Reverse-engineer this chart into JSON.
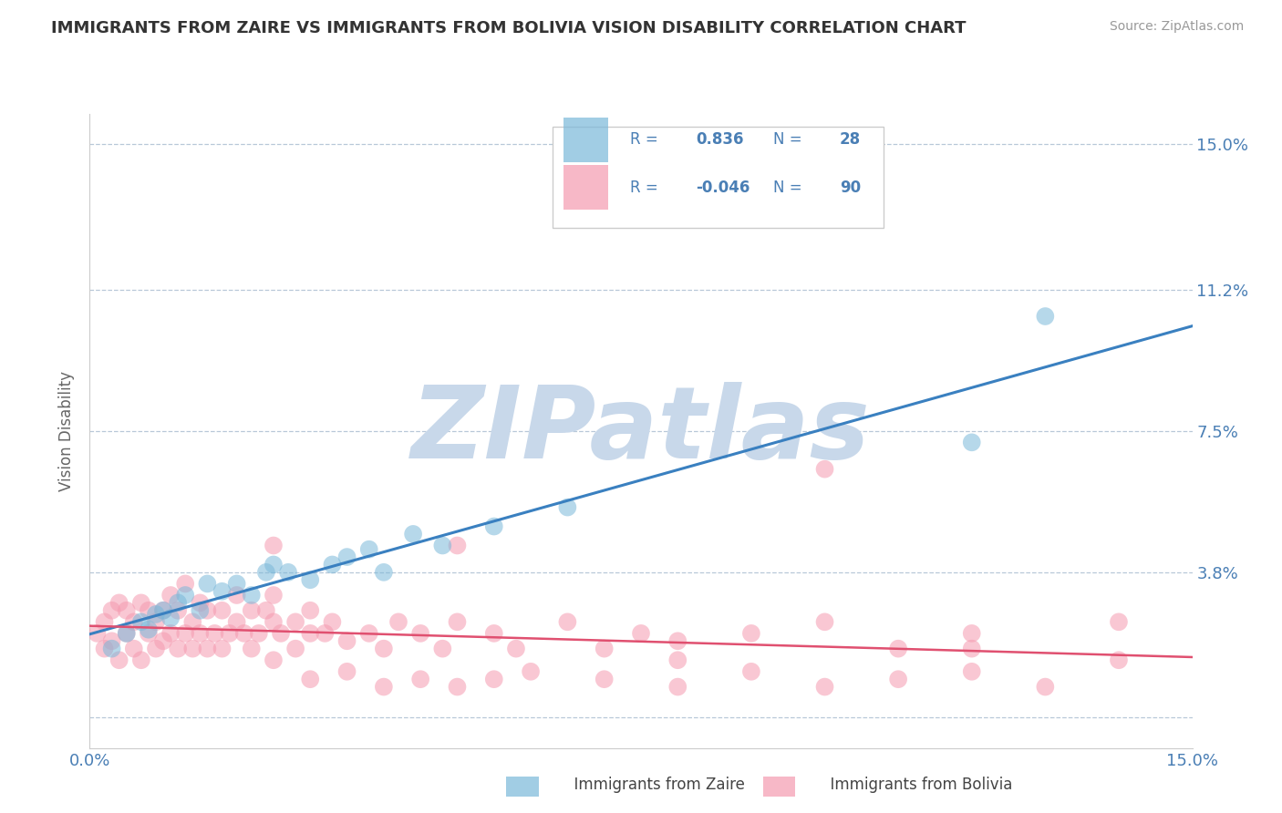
{
  "title": "IMMIGRANTS FROM ZAIRE VS IMMIGRANTS FROM BOLIVIA VISION DISABILITY CORRELATION CHART",
  "source": "Source: ZipAtlas.com",
  "ylabel": "Vision Disability",
  "x_min": 0.0,
  "x_max": 0.15,
  "y_min": -0.008,
  "y_max": 0.158,
  "y_ticks": [
    0.0,
    0.038,
    0.075,
    0.112,
    0.15
  ],
  "y_tick_labels": [
    "",
    "3.8%",
    "7.5%",
    "11.2%",
    "15.0%"
  ],
  "x_ticks": [
    0.0,
    0.15
  ],
  "x_tick_labels": [
    "0.0%",
    "15.0%"
  ],
  "zaire_color": "#7ab8d9",
  "bolivia_color": "#f59ab0",
  "zaire_line_color": "#3a80c0",
  "bolivia_line_color": "#e05070",
  "watermark": "ZIPatlas",
  "watermark_color": "#c8d8ea",
  "zaire_scatter_x": [
    0.003,
    0.005,
    0.007,
    0.008,
    0.009,
    0.01,
    0.011,
    0.012,
    0.013,
    0.015,
    0.016,
    0.018,
    0.02,
    0.022,
    0.024,
    0.025,
    0.027,
    0.03,
    0.033,
    0.035,
    0.038,
    0.04,
    0.044,
    0.048,
    0.055,
    0.065,
    0.12,
    0.13
  ],
  "zaire_scatter_y": [
    0.018,
    0.022,
    0.025,
    0.023,
    0.027,
    0.028,
    0.026,
    0.03,
    0.032,
    0.028,
    0.035,
    0.033,
    0.035,
    0.032,
    0.038,
    0.04,
    0.038,
    0.036,
    0.04,
    0.042,
    0.044,
    0.038,
    0.048,
    0.045,
    0.05,
    0.055,
    0.072,
    0.105
  ],
  "bolivia_scatter_x": [
    0.001,
    0.002,
    0.002,
    0.003,
    0.003,
    0.004,
    0.004,
    0.005,
    0.005,
    0.006,
    0.006,
    0.007,
    0.007,
    0.008,
    0.008,
    0.009,
    0.009,
    0.01,
    0.01,
    0.011,
    0.011,
    0.012,
    0.012,
    0.013,
    0.013,
    0.014,
    0.014,
    0.015,
    0.015,
    0.016,
    0.016,
    0.017,
    0.018,
    0.018,
    0.019,
    0.02,
    0.02,
    0.021,
    0.022,
    0.022,
    0.023,
    0.024,
    0.025,
    0.025,
    0.026,
    0.028,
    0.028,
    0.03,
    0.03,
    0.032,
    0.033,
    0.035,
    0.038,
    0.04,
    0.042,
    0.045,
    0.048,
    0.05,
    0.055,
    0.058,
    0.065,
    0.07,
    0.075,
    0.08,
    0.09,
    0.1,
    0.11,
    0.12,
    0.14,
    0.025,
    0.03,
    0.035,
    0.04,
    0.045,
    0.05,
    0.055,
    0.06,
    0.07,
    0.08,
    0.09,
    0.1,
    0.11,
    0.12,
    0.13,
    0.025,
    0.05,
    0.08,
    0.1,
    0.12,
    0.14
  ],
  "bolivia_scatter_y": [
    0.022,
    0.018,
    0.025,
    0.02,
    0.028,
    0.015,
    0.03,
    0.022,
    0.028,
    0.018,
    0.025,
    0.015,
    0.03,
    0.022,
    0.028,
    0.018,
    0.025,
    0.02,
    0.028,
    0.022,
    0.032,
    0.018,
    0.028,
    0.022,
    0.035,
    0.018,
    0.025,
    0.022,
    0.03,
    0.018,
    0.028,
    0.022,
    0.018,
    0.028,
    0.022,
    0.025,
    0.032,
    0.022,
    0.028,
    0.018,
    0.022,
    0.028,
    0.025,
    0.032,
    0.022,
    0.025,
    0.018,
    0.022,
    0.028,
    0.022,
    0.025,
    0.02,
    0.022,
    0.018,
    0.025,
    0.022,
    0.018,
    0.025,
    0.022,
    0.018,
    0.025,
    0.018,
    0.022,
    0.02,
    0.022,
    0.025,
    0.018,
    0.022,
    0.025,
    0.015,
    0.01,
    0.012,
    0.008,
    0.01,
    0.008,
    0.01,
    0.012,
    0.01,
    0.008,
    0.012,
    0.008,
    0.01,
    0.012,
    0.008,
    0.045,
    0.045,
    0.015,
    0.065,
    0.018,
    0.015
  ]
}
